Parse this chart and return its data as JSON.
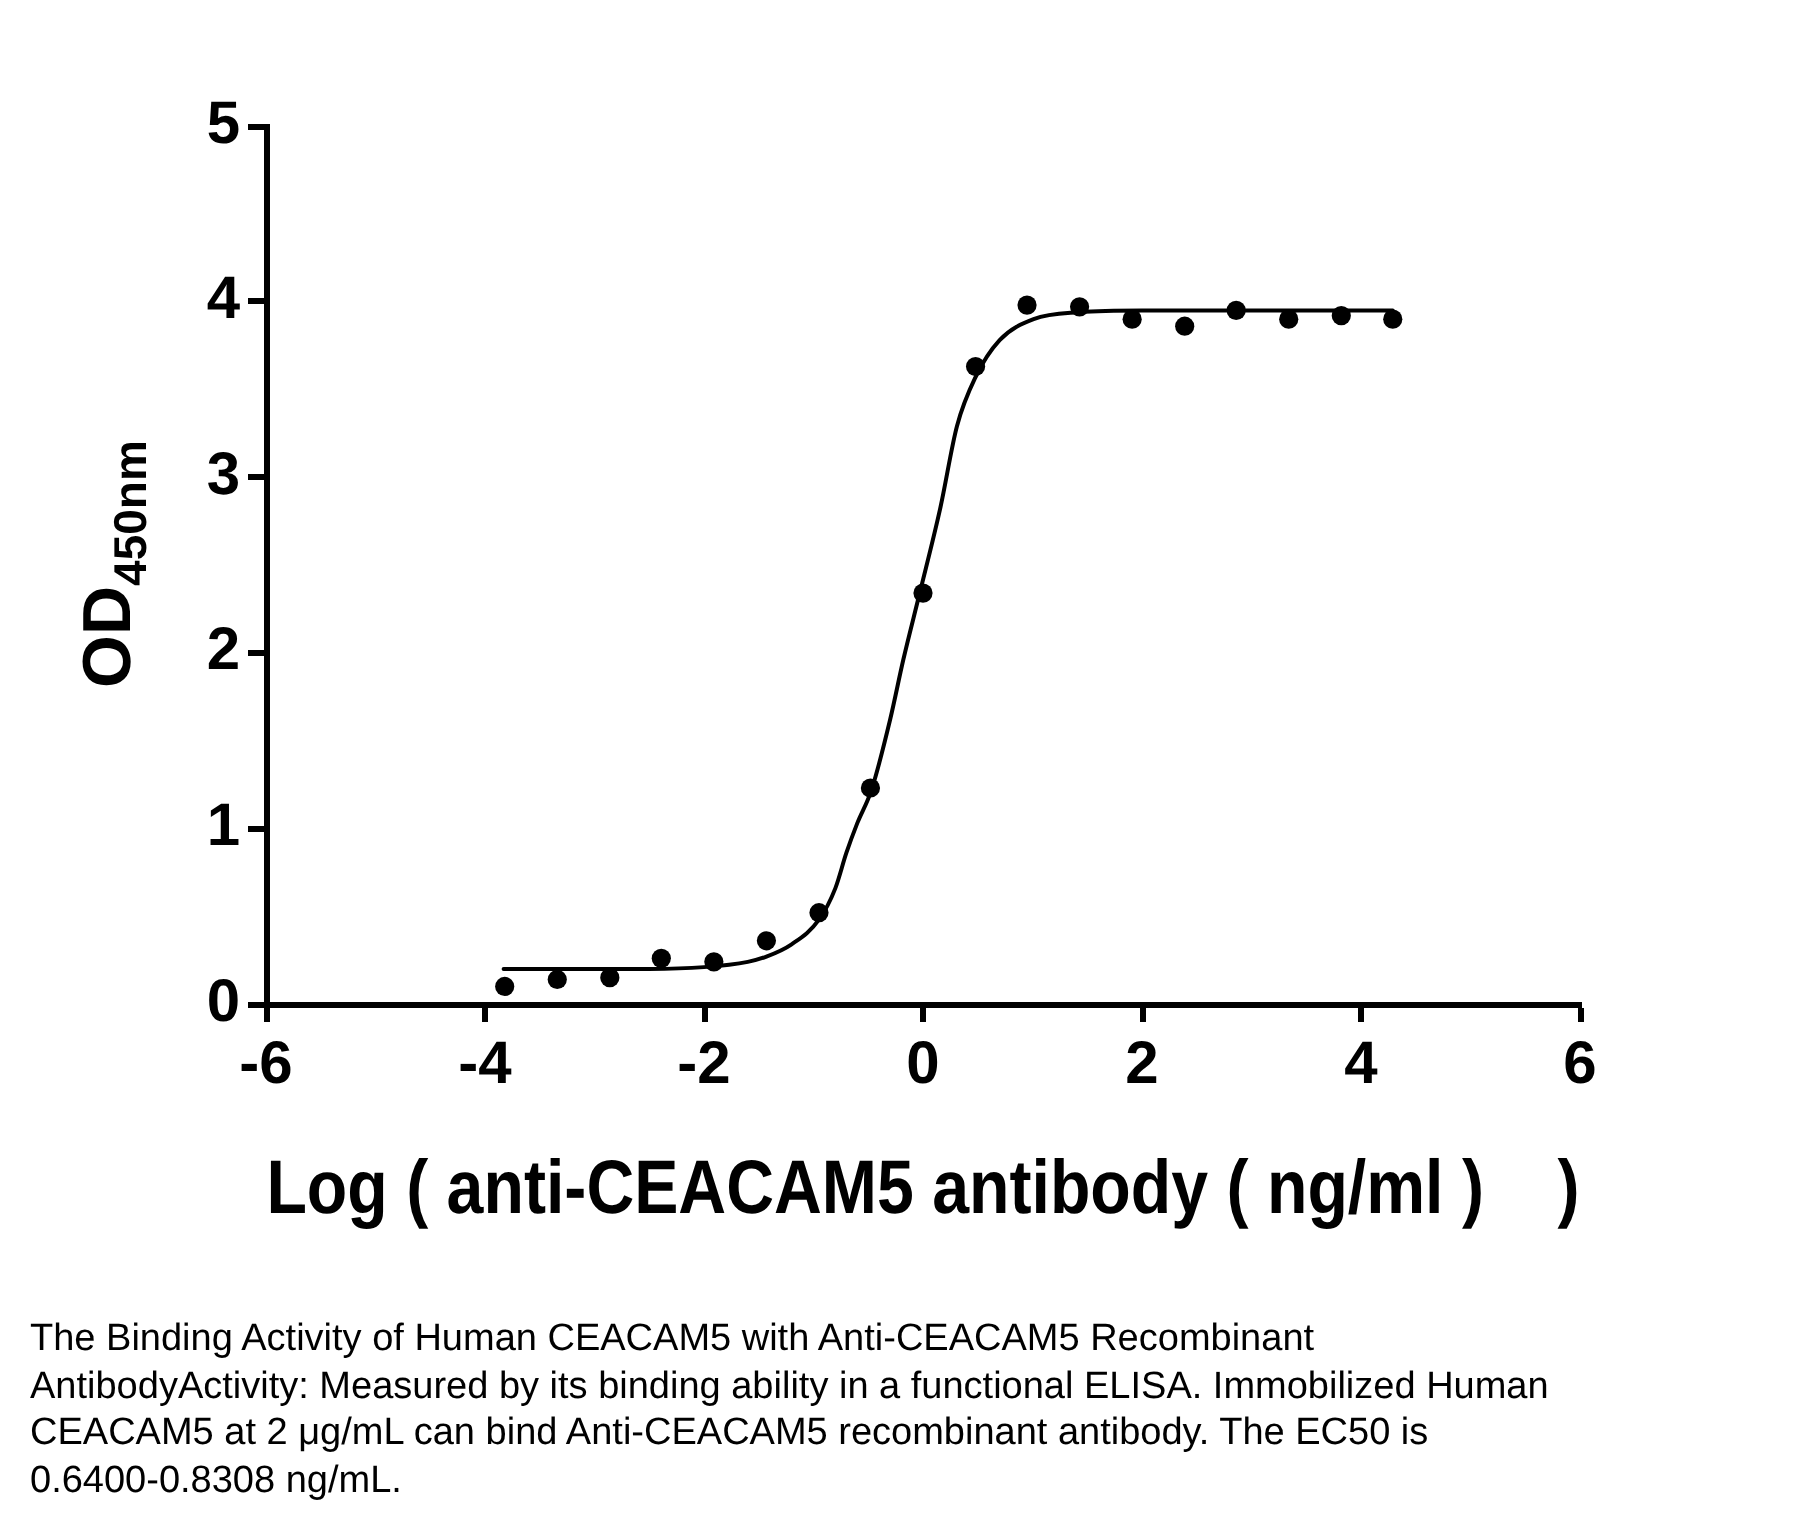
{
  "chart_data": {
    "type": "scatter",
    "xlabel": "Log ( anti-CEACAM5 antibody ( ng/ml )    )",
    "ylabel": "OD$_{450nm}$",
    "xlim": [
      -6,
      6
    ],
    "xticks": [
      -6,
      -4,
      -2,
      0,
      2,
      4,
      6
    ],
    "ylim": [
      0,
      5
    ],
    "yticks": [
      0,
      1,
      2,
      3,
      4,
      5
    ],
    "grid": false,
    "legend": false,
    "marker": "circle",
    "annotations": [
      "The Binding Activity of Human CEACAM5 with Anti-CEACAM5 Recombinant AntibodyActivity: Measured by its binding ability in a functional ELISA. Immobilized Human CEACAM5 at 2 μg/mL can bind Anti-CEACAM5 recombinant antibody. The EC50 is 0.6400-0.8308 ng/mL."
    ],
    "series": [
      {
        "color": "#000000",
        "x": [
          -3.82,
          -3.34,
          -2.86,
          -2.39,
          -1.91,
          -1.43,
          -0.95,
          -0.48,
          0.0,
          0.48,
          0.95,
          1.43,
          1.91,
          2.39,
          2.86,
          3.34,
          3.82,
          4.29
        ],
        "values": [
          0.1,
          0.14,
          0.15,
          0.26,
          0.24,
          0.36,
          0.52,
          1.23,
          2.34,
          3.63,
          3.98,
          3.97,
          3.9,
          3.86,
          3.95,
          3.9,
          3.92,
          3.9
        ]
      },
      {
        "type": "line",
        "color": "#000000",
        "marker": "none",
        "line_style": "solid",
        "x": [
          -3.83,
          -3.0,
          -2.5,
          -2.0,
          -1.6,
          -1.43,
          -1.2,
          -0.95,
          -0.8,
          -0.7,
          -0.6,
          -0.47,
          -0.3,
          -0.18,
          -0.03,
          0.16,
          0.31,
          0.48,
          0.7,
          1.01,
          1.43,
          2.0,
          3.0,
          4.29
        ],
        "values": [
          0.2,
          0.2,
          0.2,
          0.21,
          0.24,
          0.27,
          0.34,
          0.48,
          0.66,
          0.86,
          1.03,
          1.22,
          1.62,
          1.96,
          2.34,
          2.83,
          3.29,
          3.57,
          3.78,
          3.9,
          3.94,
          3.95,
          3.95,
          3.95
        ]
      }
    ]
  }
}
